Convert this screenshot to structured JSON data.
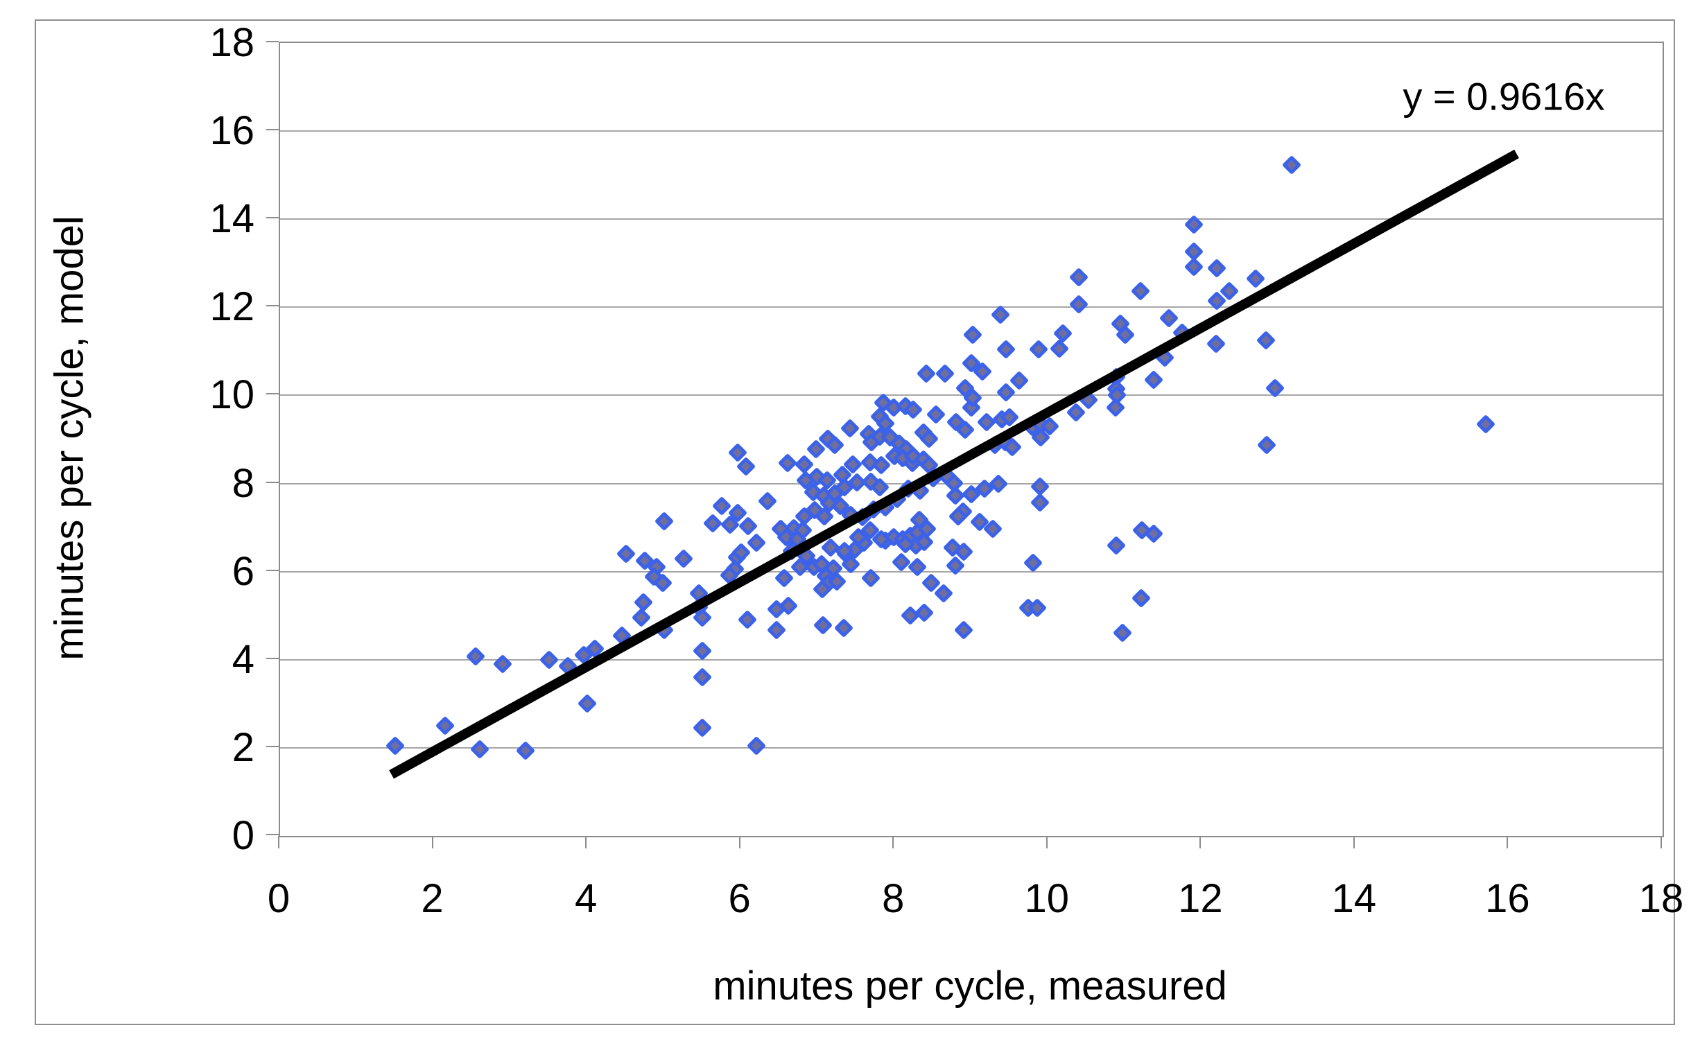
{
  "chart_data": {
    "type": "scatter",
    "title": "",
    "xlabel": "minutes per cycle, measured",
    "ylabel": "minutes per cycle, model",
    "xlim": [
      0,
      18
    ],
    "ylim": [
      0,
      18
    ],
    "xticks": [
      0,
      2,
      4,
      6,
      8,
      10,
      12,
      14,
      16,
      18
    ],
    "yticks": [
      0,
      2,
      4,
      6,
      8,
      10,
      12,
      14,
      16,
      18
    ],
    "grid": "horizontal-only",
    "legend": "none",
    "trendline": {
      "label": "y = 0.9616x",
      "slope": 0.9616,
      "intercept": 0,
      "x_start": 1.45,
      "x_end": 16.1,
      "label_anchor_x": 15.95,
      "label_anchor_y": 16.75
    },
    "marker": {
      "shape": "diamond",
      "fill_color": "#6f6f9f",
      "border_color": "#3b62e8"
    },
    "colors": {
      "trendline": "#000000",
      "gridline": "#a6a6a6",
      "axis": "#8c8c8c",
      "figure_border": "#8e8e8e",
      "text": "#000000",
      "background": "#ffffff"
    },
    "points": [
      [
        1.5,
        2.05
      ],
      [
        2.15,
        2.5
      ],
      [
        2.6,
        1.97
      ],
      [
        3.2,
        1.93
      ],
      [
        2.55,
        4.07
      ],
      [
        2.9,
        3.9
      ],
      [
        3.5,
        4.0
      ],
      [
        3.75,
        3.85
      ],
      [
        3.95,
        4.1
      ],
      [
        4.1,
        4.25
      ],
      [
        4.0,
        3.0
      ],
      [
        4.45,
        4.55
      ],
      [
        4.5,
        6.4
      ],
      [
        4.75,
        6.25
      ],
      [
        4.9,
        6.1
      ],
      [
        5.0,
        7.15
      ],
      [
        4.87,
        5.88
      ],
      [
        4.98,
        5.75
      ],
      [
        4.73,
        5.3
      ],
      [
        4.7,
        4.95
      ],
      [
        5.0,
        4.68
      ],
      [
        5.25,
        6.3
      ],
      [
        5.45,
        5.5
      ],
      [
        5.45,
        5.2
      ],
      [
        5.5,
        4.95
      ],
      [
        5.5,
        4.2
      ],
      [
        5.5,
        3.6
      ],
      [
        5.5,
        2.45
      ],
      [
        6.2,
        2.05
      ],
      [
        5.95,
        6.33
      ],
      [
        6.0,
        6.43
      ],
      [
        5.92,
        6.05
      ],
      [
        5.85,
        5.92
      ],
      [
        6.08,
        4.91
      ],
      [
        6.46,
        5.15
      ],
      [
        6.62,
        5.23
      ],
      [
        6.46,
        4.68
      ],
      [
        7.07,
        4.79
      ],
      [
        7.34,
        4.72
      ],
      [
        8.21,
        5.0
      ],
      [
        8.39,
        5.07
      ],
      [
        8.9,
        4.68
      ],
      [
        8.64,
        5.51
      ],
      [
        8.48,
        5.75
      ],
      [
        6.56,
        5.86
      ],
      [
        5.75,
        7.49
      ],
      [
        5.96,
        7.33
      ],
      [
        5.63,
        7.09
      ],
      [
        5.86,
        7.06
      ],
      [
        6.09,
        7.04
      ],
      [
        6.35,
        7.6
      ],
      [
        6.2,
        6.65
      ],
      [
        6.95,
        6.1
      ],
      [
        7.05,
        6.17
      ],
      [
        7.2,
        6.07
      ],
      [
        7.1,
        5.9
      ],
      [
        7.13,
        5.72
      ],
      [
        7.25,
        5.78
      ],
      [
        7.06,
        5.6
      ],
      [
        6.77,
        6.1
      ],
      [
        6.85,
        6.35
      ],
      [
        6.66,
        6.46
      ],
      [
        7.37,
        6.4
      ],
      [
        7.48,
        6.5
      ],
      [
        7.43,
        6.17
      ],
      [
        7.6,
        6.65
      ],
      [
        7.69,
        5.86
      ],
      [
        7.88,
        6.7
      ],
      [
        7.99,
        6.78
      ],
      [
        8.11,
        6.73
      ],
      [
        8.21,
        6.81
      ],
      [
        8.28,
        6.6
      ],
      [
        8.39,
        6.67
      ],
      [
        8.3,
        6.1
      ],
      [
        8.9,
        6.45
      ],
      [
        8.76,
        6.55
      ],
      [
        8.79,
        6.13
      ],
      [
        7.17,
        6.55
      ],
      [
        7.35,
        6.47
      ],
      [
        7.53,
        6.78
      ],
      [
        7.68,
        6.94
      ],
      [
        7.83,
        6.73
      ],
      [
        8.14,
        6.63
      ],
      [
        8.3,
        6.89
      ],
      [
        8.32,
        7.18
      ],
      [
        8.09,
        6.21
      ],
      [
        8.42,
        6.97
      ],
      [
        9.11,
        7.12
      ],
      [
        9.28,
        6.97
      ],
      [
        8.89,
        7.36
      ],
      [
        6.52,
        6.97
      ],
      [
        6.59,
        6.78
      ],
      [
        6.69,
        6.99
      ],
      [
        6.73,
        6.73
      ],
      [
        6.81,
        6.94
      ],
      [
        6.61,
        8.47
      ],
      [
        6.82,
        8.44
      ],
      [
        7.46,
        8.44
      ],
      [
        7.68,
        8.48
      ],
      [
        7.83,
        8.41
      ],
      [
        8.23,
        8.46
      ],
      [
        6.84,
        8.07
      ],
      [
        6.99,
        8.15
      ],
      [
        7.12,
        8.07
      ],
      [
        7.32,
        8.2
      ],
      [
        7.35,
        7.91
      ],
      [
        7.51,
        8.02
      ],
      [
        7.69,
        8.04
      ],
      [
        7.81,
        7.91
      ],
      [
        6.94,
        7.81
      ],
      [
        7.08,
        7.73
      ],
      [
        7.22,
        7.78
      ],
      [
        7.15,
        7.55
      ],
      [
        7.29,
        7.49
      ],
      [
        6.96,
        7.39
      ],
      [
        6.82,
        7.26
      ],
      [
        7.09,
        7.26
      ],
      [
        7.43,
        7.28
      ],
      [
        7.58,
        7.23
      ],
      [
        7.73,
        7.41
      ],
      [
        7.88,
        7.46
      ],
      [
        8.03,
        7.65
      ],
      [
        8.18,
        7.88
      ],
      [
        8.33,
        7.83
      ],
      [
        8.5,
        8.12
      ],
      [
        8.79,
        7.73
      ],
      [
        8.83,
        7.26
      ],
      [
        5.96,
        8.7
      ],
      [
        6.07,
        8.38
      ],
      [
        6.98,
        8.78
      ],
      [
        7.13,
        9.02
      ],
      [
        7.22,
        8.88
      ],
      [
        7.42,
        9.25
      ],
      [
        7.66,
        9.12
      ],
      [
        7.7,
        8.94
      ],
      [
        7.81,
        9.52
      ],
      [
        7.88,
        9.36
      ],
      [
        7.81,
        9.07
      ],
      [
        7.94,
        9.04
      ],
      [
        7.85,
        9.83
      ],
      [
        7.99,
        9.73
      ],
      [
        8.14,
        9.75
      ],
      [
        8.24,
        9.67
      ],
      [
        8.06,
        8.91
      ],
      [
        8.15,
        8.78
      ],
      [
        8.0,
        8.62
      ],
      [
        8.11,
        8.57
      ],
      [
        8.24,
        8.62
      ],
      [
        8.38,
        9.15
      ],
      [
        8.45,
        9.02
      ],
      [
        8.38,
        8.54
      ],
      [
        8.45,
        8.41
      ],
      [
        8.54,
        9.57
      ],
      [
        8.8,
        9.4
      ],
      [
        8.92,
        9.22
      ],
      [
        9.0,
        9.73
      ],
      [
        9.2,
        9.4
      ],
      [
        9.4,
        9.45
      ],
      [
        9.5,
        9.5
      ],
      [
        9.31,
        8.88
      ],
      [
        9.44,
        8.93
      ],
      [
        9.53,
        8.83
      ],
      [
        8.41,
        10.49
      ],
      [
        8.66,
        10.49
      ],
      [
        8.92,
        10.17
      ],
      [
        9.02,
        9.94
      ],
      [
        9.0,
        10.73
      ],
      [
        9.14,
        10.54
      ],
      [
        9.02,
        11.38
      ],
      [
        9.38,
        11.83
      ],
      [
        9.45,
        11.05
      ],
      [
        9.45,
        10.07
      ],
      [
        9.0,
        7.75
      ],
      [
        9.17,
        7.88
      ],
      [
        9.35,
        8.0
      ],
      [
        8.69,
        8.15
      ],
      [
        8.77,
        8.01
      ],
      [
        13.17,
        15.23
      ],
      [
        11.9,
        13.87
      ],
      [
        11.9,
        13.26
      ],
      [
        11.9,
        12.91
      ],
      [
        12.2,
        12.88
      ],
      [
        10.4,
        12.68
      ],
      [
        10.4,
        12.07
      ],
      [
        11.2,
        12.36
      ],
      [
        12.7,
        12.65
      ],
      [
        12.2,
        12.15
      ],
      [
        12.36,
        12.36
      ],
      [
        11.57,
        11.76
      ],
      [
        10.94,
        11.62
      ],
      [
        11.0,
        11.38
      ],
      [
        10.19,
        11.4
      ],
      [
        11.74,
        11.42
      ],
      [
        9.88,
        11.04
      ],
      [
        10.15,
        11.06
      ],
      [
        12.19,
        11.17
      ],
      [
        12.84,
        11.25
      ],
      [
        9.62,
        10.33
      ],
      [
        10.89,
        10.42
      ],
      [
        10.89,
        10.15
      ],
      [
        10.9,
        10.0
      ],
      [
        10.88,
        9.72
      ],
      [
        10.53,
        9.89
      ],
      [
        10.36,
        9.62
      ],
      [
        9.79,
        9.28
      ],
      [
        9.91,
        9.33
      ],
      [
        10.02,
        9.3
      ],
      [
        9.9,
        9.04
      ],
      [
        12.85,
        8.88
      ],
      [
        12.95,
        10.17
      ],
      [
        11.37,
        10.36
      ],
      [
        11.52,
        10.86
      ],
      [
        9.89,
        7.93
      ],
      [
        9.89,
        7.57
      ],
      [
        11.22,
        6.94
      ],
      [
        11.37,
        6.86
      ],
      [
        10.89,
        6.6
      ],
      [
        9.8,
        6.2
      ],
      [
        9.74,
        5.17
      ],
      [
        9.86,
        5.17
      ],
      [
        11.21,
        5.39
      ],
      [
        10.97,
        4.61
      ],
      [
        15.7,
        9.35
      ]
    ]
  }
}
